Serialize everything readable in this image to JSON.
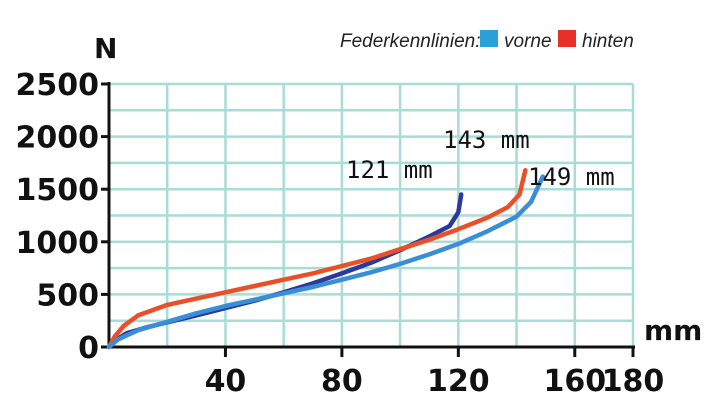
{
  "chart_data": {
    "type": "line",
    "title": "",
    "xlabel": "mm",
    "ylabel": "N",
    "xlim": [
      0,
      180
    ],
    "ylim": [
      0,
      2500
    ],
    "grid": true,
    "x_ticks": [
      {
        "value": 40,
        "label": "40"
      },
      {
        "value": 80,
        "label": "80"
      },
      {
        "value": 120,
        "label": "120"
      },
      {
        "value": 160,
        "label": "160"
      },
      {
        "value": 180,
        "label": "180"
      }
    ],
    "y_ticks": [
      {
        "value": 0,
        "label": "0"
      },
      {
        "value": 500,
        "label": "500"
      },
      {
        "value": 1000,
        "label": "1000"
      },
      {
        "value": 1500,
        "label": "1500"
      },
      {
        "value": 2000,
        "label": "2000"
      },
      {
        "value": 2500,
        "label": "2500"
      }
    ],
    "legend": {
      "title": "Federkennlinien:",
      "placement": "top-right",
      "items": [
        {
          "label": "vorne",
          "color": "#2a9fd8"
        },
        {
          "label": "hinten",
          "color": "#e8302a"
        }
      ]
    },
    "series": [
      {
        "color": "#2a3a9a",
        "points": [
          [
            0,
            0
          ],
          [
            2,
            60
          ],
          [
            6,
            130
          ],
          [
            12,
            180
          ],
          [
            20,
            235
          ],
          [
            30,
            300
          ],
          [
            40,
            370
          ],
          [
            50,
            440
          ],
          [
            60,
            520
          ],
          [
            70,
            605
          ],
          [
            80,
            700
          ],
          [
            90,
            800
          ],
          [
            100,
            920
          ],
          [
            110,
            1050
          ],
          [
            117,
            1150
          ],
          [
            120,
            1280
          ],
          [
            121,
            1450
          ]
        ]
      },
      {
        "color": "#e8502a",
        "points": [
          [
            0,
            0
          ],
          [
            2,
            100
          ],
          [
            5,
            200
          ],
          [
            10,
            300
          ],
          [
            20,
            400
          ],
          [
            30,
            460
          ],
          [
            40,
            520
          ],
          [
            50,
            580
          ],
          [
            60,
            640
          ],
          [
            70,
            700
          ],
          [
            80,
            770
          ],
          [
            90,
            840
          ],
          [
            100,
            930
          ],
          [
            110,
            1020
          ],
          [
            120,
            1120
          ],
          [
            130,
            1230
          ],
          [
            137,
            1330
          ],
          [
            141,
            1450
          ],
          [
            143,
            1680
          ]
        ]
      },
      {
        "color": "#3a8ed8",
        "points": [
          [
            0,
            0
          ],
          [
            3,
            70
          ],
          [
            10,
            160
          ],
          [
            20,
            240
          ],
          [
            30,
            320
          ],
          [
            40,
            390
          ],
          [
            50,
            450
          ],
          [
            60,
            510
          ],
          [
            70,
            570
          ],
          [
            80,
            640
          ],
          [
            90,
            710
          ],
          [
            100,
            790
          ],
          [
            110,
            880
          ],
          [
            120,
            980
          ],
          [
            130,
            1100
          ],
          [
            140,
            1240
          ],
          [
            145,
            1380
          ],
          [
            149,
            1620
          ]
        ]
      }
    ],
    "annotations": [
      {
        "text": "121 mm",
        "series_index": 0
      },
      {
        "text": "143 mm",
        "series_index": 1
      },
      {
        "text": "149 mm",
        "series_index": 2
      }
    ]
  }
}
